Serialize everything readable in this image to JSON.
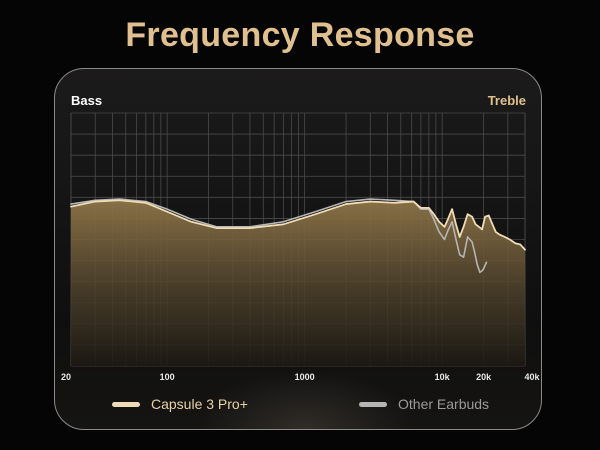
{
  "page_title": "Frequency Response",
  "chart_data": {
    "type": "line",
    "title": "Frequency Response",
    "corner_labels": {
      "left": "Bass",
      "right": "Treble"
    },
    "x_scale": "log",
    "xlim": [
      20,
      40000
    ],
    "x_tick_labels": [
      {
        "value": 20,
        "label": "20"
      },
      {
        "value": 100,
        "label": "100"
      },
      {
        "value": 1000,
        "label": "1000"
      },
      {
        "value": 10000,
        "label": "10k"
      },
      {
        "value": 20000,
        "label": "20k"
      },
      {
        "value": 40000,
        "label": "40k"
      }
    ],
    "ylim": [
      0,
      100
    ],
    "grid": true,
    "legend_position": "bottom",
    "series": [
      {
        "name": "Capsule 3 Pro+",
        "color": "#efdcb6",
        "fill": true,
        "points": [
          [
            20,
            63
          ],
          [
            30,
            65
          ],
          [
            45,
            65.5
          ],
          [
            70,
            64.5
          ],
          [
            100,
            61
          ],
          [
            150,
            57
          ],
          [
            230,
            54.5
          ],
          [
            400,
            54.5
          ],
          [
            700,
            56
          ],
          [
            1200,
            60
          ],
          [
            2000,
            64
          ],
          [
            3000,
            65
          ],
          [
            4500,
            64.5
          ],
          [
            6200,
            65
          ],
          [
            7000,
            62.5
          ],
          [
            8000,
            62.5
          ],
          [
            8700,
            60
          ],
          [
            9500,
            57
          ],
          [
            10400,
            55
          ],
          [
            11000,
            58
          ],
          [
            11800,
            62
          ],
          [
            12600,
            56
          ],
          [
            13400,
            51
          ],
          [
            14300,
            55
          ],
          [
            15300,
            60
          ],
          [
            16500,
            59
          ],
          [
            17500,
            56
          ],
          [
            18500,
            55
          ],
          [
            19500,
            54
          ],
          [
            20500,
            59
          ],
          [
            21800,
            59.5
          ],
          [
            23200,
            56
          ],
          [
            24500,
            53
          ],
          [
            26000,
            52
          ],
          [
            28500,
            51
          ],
          [
            31000,
            50
          ],
          [
            34000,
            48.5
          ],
          [
            37000,
            48
          ],
          [
            40000,
            46
          ]
        ]
      },
      {
        "name": "Other Earbuds",
        "color": "#b5b5b5",
        "fill": false,
        "points": [
          [
            20,
            64
          ],
          [
            30,
            65.5
          ],
          [
            45,
            66
          ],
          [
            70,
            65
          ],
          [
            100,
            62
          ],
          [
            150,
            58
          ],
          [
            230,
            55
          ],
          [
            400,
            55
          ],
          [
            700,
            57
          ],
          [
            1200,
            61
          ],
          [
            2000,
            65
          ],
          [
            3000,
            66
          ],
          [
            4500,
            65.5
          ],
          [
            6200,
            65
          ],
          [
            7000,
            62
          ],
          [
            8000,
            62
          ],
          [
            8700,
            58
          ],
          [
            9500,
            53
          ],
          [
            10400,
            50
          ],
          [
            11000,
            53.5
          ],
          [
            11800,
            57
          ],
          [
            12600,
            50
          ],
          [
            13400,
            44
          ],
          [
            14300,
            43
          ],
          [
            15300,
            51
          ],
          [
            16500,
            49
          ],
          [
            17200,
            45
          ],
          [
            18000,
            40
          ],
          [
            18800,
            37
          ],
          [
            19800,
            38
          ],
          [
            21000,
            41
          ]
        ]
      }
    ]
  },
  "legend": [
    {
      "label": "Capsule 3 Pro+",
      "color": "#efdcb6"
    },
    {
      "label": "Other Earbuds",
      "color": "#b5b5b5"
    }
  ]
}
